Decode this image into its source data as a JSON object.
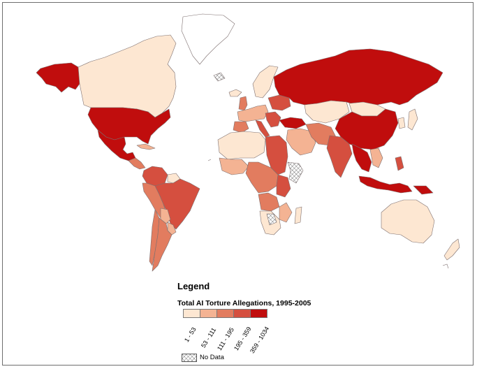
{
  "legend": {
    "heading": "Legend",
    "subtitle": "Total AI Torture Allegations, 1995-2005",
    "classes": [
      {
        "label": "1 - 53",
        "color": "#fde7d2"
      },
      {
        "label": "53 - 111",
        "color": "#f4b393"
      },
      {
        "label": "111 - 195",
        "color": "#e27c5f"
      },
      {
        "label": "195 - 359",
        "color": "#d54f3f"
      },
      {
        "label": "359 - 1034",
        "color": "#c00d0d"
      }
    ],
    "no_data_label": "No Data"
  },
  "colors": {
    "border": "#6e6e6e",
    "coast": "#7d6f6f"
  }
}
